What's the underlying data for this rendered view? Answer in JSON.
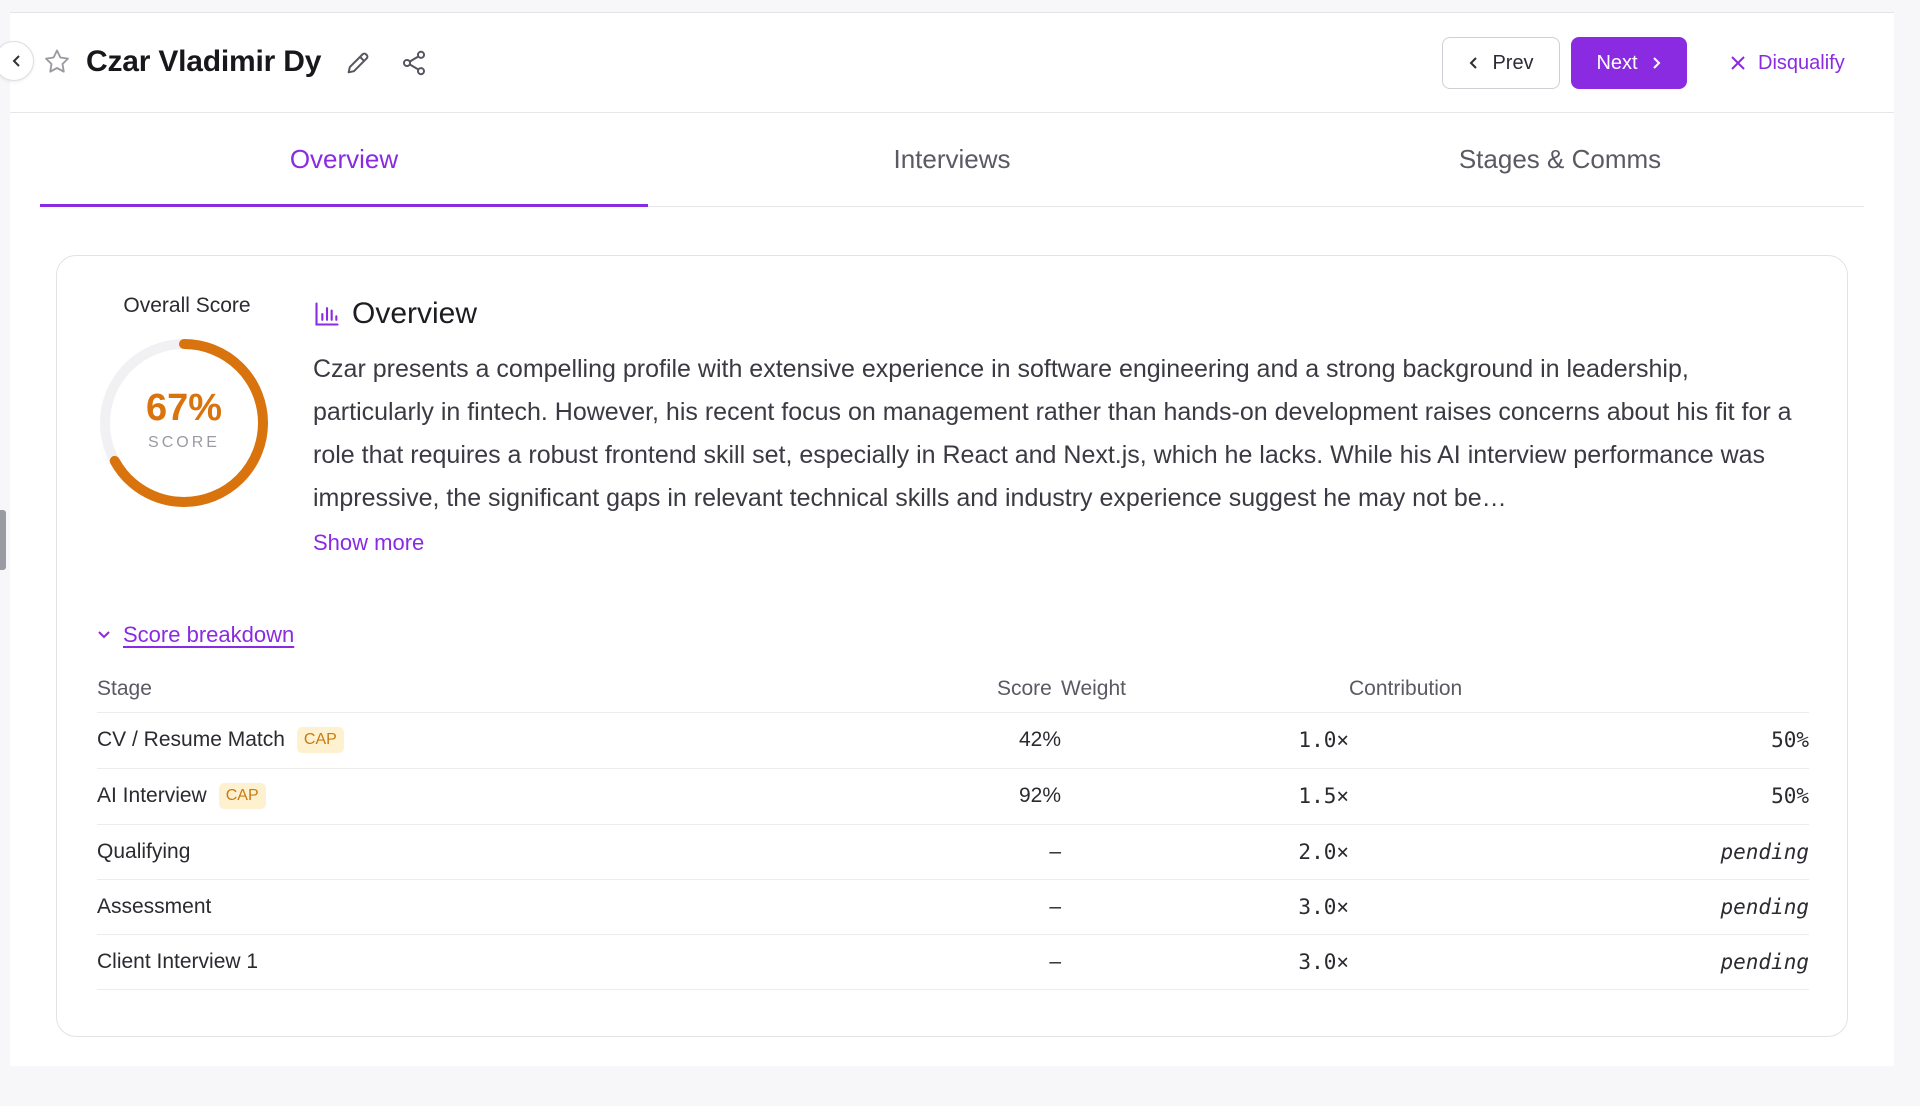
{
  "header": {
    "candidate_name": "Czar Vladimir Dy",
    "prev_label": "Prev",
    "next_label": "Next",
    "disqualify_label": "Disqualify"
  },
  "tabs": [
    {
      "label": "Overview",
      "active": true
    },
    {
      "label": "Interviews",
      "active": false
    },
    {
      "label": "Stages & Comms",
      "active": false
    }
  ],
  "overall": {
    "label": "Overall Score",
    "value_text": "67%",
    "value": 0.67,
    "sub": "SCORE",
    "color": "#d9730d"
  },
  "overview": {
    "title": "Overview",
    "text": "Czar presents a compelling profile with extensive experience in software engineering and a strong background in leadership, particularly in fintech. However, his recent focus on management rather than hands-on development raises concerns about his fit for a role that requires a robust frontend skill set, especially in React and Next.js, which he lacks. While his AI interview performance was impressive, the significant gaps in relevant technical skills and industry experience suggest he may not be…",
    "show_more": "Show more"
  },
  "breakdown": {
    "toggle_label": "Score breakdown",
    "columns": [
      "Stage",
      "Score",
      "Weight",
      "Contribution"
    ],
    "rows": [
      {
        "stage": "CV / Resume Match",
        "badge": "CAP",
        "score": "42%",
        "weight": "1.0×",
        "contribution": "50%"
      },
      {
        "stage": "AI Interview",
        "badge": "CAP",
        "score": "92%",
        "weight": "1.5×",
        "contribution": "50%"
      },
      {
        "stage": "Qualifying",
        "badge": "",
        "score": "–",
        "weight": "2.0×",
        "contribution": "pending"
      },
      {
        "stage": "Assessment",
        "badge": "",
        "score": "–",
        "weight": "3.0×",
        "contribution": "pending"
      },
      {
        "stage": "Client Interview 1",
        "badge": "",
        "score": "–",
        "weight": "3.0×",
        "contribution": "pending"
      }
    ]
  },
  "colors": {
    "accent": "#8a2be2",
    "score_low": "#d9480f",
    "score_high": "#1f9d63",
    "cap_bg": "#fdf1cf"
  }
}
